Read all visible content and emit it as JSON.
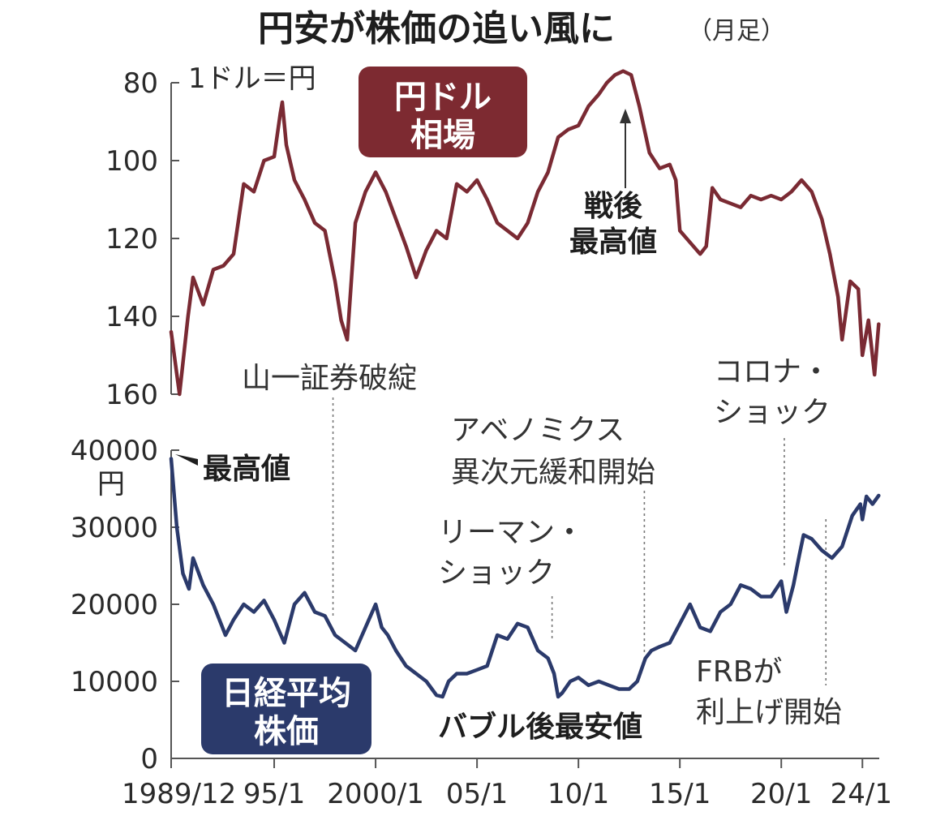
{
  "title": "円安が株価の追い風に",
  "subtitle": "（月足）",
  "colors": {
    "usdjpy": "#7a2a33",
    "nikkei": "#2b3a6b",
    "badge_usdjpy": "#7d2a31",
    "badge_nikkei": "#2b3a6b",
    "guide": "#777777"
  },
  "chart_data": [
    {
      "type": "line",
      "panel": "top",
      "title": "円ドル相場",
      "ylabel": "1ドル＝円",
      "y_inverted": true,
      "ylim": [
        80,
        160
      ],
      "yticks": [
        "80",
        "100",
        "120",
        "140",
        "160"
      ],
      "series": [
        {
          "name": "円ドル相場",
          "x": [
            1989.92,
            1990.33,
            1990.75,
            1991.0,
            1991.5,
            1992.0,
            1992.5,
            1993.0,
            1993.5,
            1994.0,
            1994.5,
            1995.0,
            1995.3,
            1995.4,
            1995.6,
            1996.0,
            1996.5,
            1997.0,
            1997.5,
            1998.0,
            1998.3,
            1998.6,
            1999.0,
            1999.5,
            2000.0,
            2000.5,
            2001.0,
            2001.5,
            2002.0,
            2002.5,
            2003.0,
            2003.5,
            2004.0,
            2004.5,
            2005.0,
            2005.5,
            2006.0,
            2006.5,
            2007.0,
            2007.5,
            2008.0,
            2008.5,
            2009.0,
            2009.5,
            2010.0,
            2010.5,
            2011.0,
            2011.4,
            2011.8,
            2012.2,
            2012.6,
            2013.0,
            2013.5,
            2014.0,
            2014.5,
            2014.8,
            2015.0,
            2015.5,
            2016.0,
            2016.3,
            2016.6,
            2017.0,
            2017.5,
            2018.0,
            2018.5,
            2019.0,
            2019.5,
            2020.0,
            2020.5,
            2021.0,
            2021.5,
            2022.0,
            2022.4,
            2022.8,
            2023.0,
            2023.4,
            2023.8,
            2024.0,
            2024.3,
            2024.45,
            2024.6,
            2024.8
          ],
          "values": [
            144,
            160,
            140,
            130,
            137,
            128,
            127,
            124,
            106,
            108,
            100,
            99,
            88,
            85,
            96,
            105,
            110,
            116,
            118,
            131,
            141,
            146,
            116,
            108,
            103,
            108,
            115,
            122,
            130,
            123,
            118,
            120,
            106,
            108,
            105,
            110,
            116,
            118,
            120,
            116,
            108,
            103,
            94,
            92,
            91,
            86,
            83,
            80,
            78,
            77,
            78,
            86,
            98,
            102,
            101,
            105,
            118,
            121,
            124,
            122,
            107,
            110,
            111,
            112,
            109,
            110,
            109,
            110,
            108,
            105,
            108,
            115,
            124,
            135,
            146,
            131,
            133,
            150,
            141,
            148,
            155,
            142
          ]
        }
      ]
    },
    {
      "type": "line",
      "panel": "bottom",
      "title": "日経平均株価",
      "ylabel": "円",
      "ylim": [
        0,
        40000
      ],
      "yticks": [
        "0",
        "10000",
        "20000",
        "30000",
        "40000"
      ],
      "series": [
        {
          "name": "日経平均株価",
          "x": [
            1989.92,
            1990.2,
            1990.5,
            1990.8,
            1991.0,
            1991.5,
            1992.0,
            1992.6,
            1993.0,
            1993.5,
            1994.0,
            1994.5,
            1995.0,
            1995.5,
            1996.0,
            1996.5,
            1997.0,
            1997.5,
            1998.0,
            1998.5,
            1999.0,
            1999.5,
            2000.0,
            2000.3,
            2000.6,
            2001.0,
            2001.5,
            2002.0,
            2002.5,
            2003.0,
            2003.3,
            2003.6,
            2004.0,
            2004.5,
            2005.0,
            2005.5,
            2006.0,
            2006.5,
            2007.0,
            2007.5,
            2008.0,
            2008.5,
            2008.8,
            2009.0,
            2009.2,
            2009.6,
            2010.0,
            2010.5,
            2011.0,
            2011.5,
            2012.0,
            2012.5,
            2012.9,
            2013.3,
            2013.6,
            2014.0,
            2014.5,
            2015.0,
            2015.5,
            2016.0,
            2016.5,
            2017.0,
            2017.5,
            2018.0,
            2018.5,
            2019.0,
            2019.5,
            2020.0,
            2020.25,
            2020.6,
            2020.9,
            2021.1,
            2021.5,
            2022.0,
            2022.5,
            2023.0,
            2023.5,
            2023.9,
            2024.0,
            2024.2,
            2024.5,
            2024.8
          ],
          "values": [
            38900,
            30000,
            24000,
            22000,
            26000,
            22500,
            20000,
            16000,
            18000,
            20000,
            19000,
            20500,
            18000,
            15000,
            20000,
            21500,
            19000,
            18500,
            16000,
            15000,
            14000,
            17000,
            20000,
            17000,
            16000,
            14000,
            12000,
            11000,
            10000,
            8200,
            8000,
            10000,
            11000,
            11000,
            11500,
            12000,
            16000,
            15500,
            17500,
            17000,
            14000,
            13000,
            11000,
            8000,
            8500,
            10000,
            10500,
            9500,
            10000,
            9500,
            9000,
            9000,
            10000,
            13000,
            14000,
            14500,
            15000,
            17500,
            20000,
            17000,
            16500,
            19000,
            20000,
            22500,
            22000,
            21000,
            21000,
            23000,
            19000,
            22500,
            26500,
            29000,
            28500,
            27000,
            26000,
            27500,
            31500,
            33000,
            31000,
            34000,
            33000,
            34100
          ]
        }
      ]
    }
  ],
  "xaxis": {
    "domain": [
      1989.92,
      2024.67
    ],
    "ticks": [
      {
        "x": 1989.92,
        "label": "1989/12"
      },
      {
        "x": 1995.0,
        "label": "95/1"
      },
      {
        "x": 2000.0,
        "label": "2000/1"
      },
      {
        "x": 2005.0,
        "label": "05/1"
      },
      {
        "x": 2010.0,
        "label": "10/1"
      },
      {
        "x": 2015.0,
        "label": "15/1"
      },
      {
        "x": 2020.0,
        "label": "20/1"
      },
      {
        "x": 2024.0,
        "label": "24/1"
      }
    ]
  },
  "annotations": {
    "usdjpy_badge": [
      "円ドル",
      "相場"
    ],
    "nikkei_badge": [
      "日経平均",
      "株価"
    ],
    "postwar_high": [
      "戦後",
      "最高値"
    ],
    "all_time_high": "最高値",
    "yamaichi": "山一証券破綻",
    "abenomics": [
      "アベノミクス",
      "異次元緩和開始"
    ],
    "lehman": [
      "リーマン・",
      "ショック"
    ],
    "corona": [
      "コロナ・",
      "ショック"
    ],
    "bubble_low": "バブル後最安値",
    "frb": [
      "FRBが",
      "利上げ開始"
    ]
  }
}
